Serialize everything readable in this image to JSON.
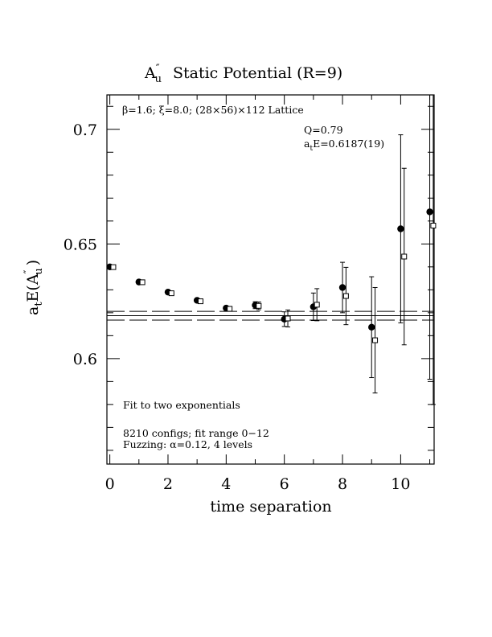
{
  "chart_data": {
    "type": "scatter",
    "title": "A″u  Static Potential (R=9)",
    "title_main": "A",
    "title_sup": "″",
    "title_sub": "u",
    "title_rest": "Static Potential (R=9)",
    "xlabel": "time separation",
    "ylabel": "aₜE(A″u)",
    "ylabel_a": "a",
    "ylabel_t": "t",
    "ylabel_E": "E(A",
    "ylabel_dd": "″",
    "ylabel_u": "u",
    "ylabel_close": ")",
    "xlim": [
      -0.1,
      11.15
    ],
    "ylim": [
      0.554,
      0.715
    ],
    "xticks": [
      0,
      2,
      4,
      6,
      8,
      10
    ],
    "xtick_labels": [
      "0",
      "2",
      "4",
      "6",
      "8",
      "10"
    ],
    "yticks": [
      0.6,
      0.65,
      0.7
    ],
    "ytick_labels": [
      "0.6",
      "0.65",
      "0.7"
    ],
    "grid": false,
    "lattice_label": "β=1.6; ξ=8.0; (28×56)×112 Lattice",
    "fit_q": "Q=0.79",
    "fit_energy": "aₜE=0.6187(19)",
    "fit_energy_a": "a",
    "fit_energy_t": "t",
    "fit_energy_rest": "E=0.6187(19)",
    "fit_type": "Fit to two exponentials",
    "configs_line": "8210 configs; fit range 0−12",
    "fuzzing_line": "Fuzzing: α=0.12, 4 levels",
    "fit_band": {
      "center": 0.6187,
      "upper": 0.6206,
      "lower": 0.6168
    },
    "series": [
      {
        "marker": "filled-circle",
        "x": [
          0,
          1,
          2,
          3,
          4,
          5,
          6,
          7,
          8,
          9,
          10,
          11
        ],
        "y": [
          0.64,
          0.6334,
          0.629,
          0.6254,
          0.622,
          0.6233,
          0.6172,
          0.6226,
          0.631,
          0.6137,
          0.6566,
          0.664
        ],
        "err": [
          0.0005,
          0.0006,
          0.0006,
          0.0008,
          0.0008,
          0.0015,
          0.0032,
          0.006,
          0.011,
          0.022,
          0.041,
          0.073
        ]
      },
      {
        "marker": "open-square",
        "x": [
          0.12,
          1.12,
          2.12,
          3.12,
          4.12,
          5.12,
          6.12,
          7.12,
          8.12,
          9.12,
          10.12,
          11.12
        ],
        "y": [
          0.6399,
          0.6333,
          0.6285,
          0.625,
          0.6217,
          0.623,
          0.6175,
          0.6235,
          0.6273,
          0.608,
          0.6445,
          0.658
        ],
        "err": [
          0.0006,
          0.0007,
          0.0007,
          0.0009,
          0.0009,
          0.0017,
          0.0037,
          0.007,
          0.0125,
          0.023,
          0.0385,
          0.078
        ]
      }
    ]
  }
}
